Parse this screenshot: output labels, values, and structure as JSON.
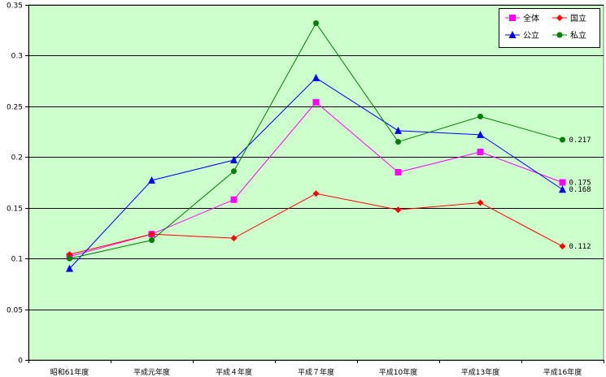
{
  "chart_data": {
    "type": "line",
    "categories": [
      "昭和61年度",
      "平成元年度",
      "平成４年度",
      "平成７年度",
      "平成10年度",
      "平成13年度",
      "平成16年度"
    ],
    "ylim": [
      0,
      0.35
    ],
    "yticks": [
      "0",
      "0.05",
      "0.1",
      "0.15",
      "0.2",
      "0.25",
      "0.3",
      "0.35"
    ],
    "grid": true,
    "legend_position": "top-right",
    "plot_background": "#CCFFCC",
    "series": [
      {
        "name": "全体",
        "color": "#FF00FF",
        "marker": "square",
        "values": [
          0.102,
          0.124,
          0.158,
          0.254,
          0.185,
          0.205,
          0.175
        ]
      },
      {
        "name": "国立",
        "color": "#FF0000",
        "marker": "diamond",
        "values": [
          0.104,
          0.124,
          0.12,
          0.164,
          0.148,
          0.155,
          0.112
        ]
      },
      {
        "name": "公立",
        "color": "#0000FF",
        "marker": "triangle",
        "values": [
          0.09,
          0.177,
          0.197,
          0.278,
          0.226,
          0.222,
          0.168
        ]
      },
      {
        "name": "私立",
        "color": "#008000",
        "marker": "circle",
        "values": [
          0.1,
          0.118,
          0.186,
          0.332,
          0.215,
          0.24,
          0.217
        ]
      }
    ],
    "data_labels": [
      {
        "series": "私立",
        "index": 6,
        "text": "0.217"
      },
      {
        "series": "全体",
        "index": 6,
        "text": "0.175"
      },
      {
        "series": "公立",
        "index": 6,
        "text": "0.168"
      },
      {
        "series": "国立",
        "index": 6,
        "text": "0.112"
      }
    ],
    "legend": {
      "rows": [
        [
          "全体",
          "国立"
        ],
        [
          "公立",
          "私立"
        ]
      ]
    }
  }
}
